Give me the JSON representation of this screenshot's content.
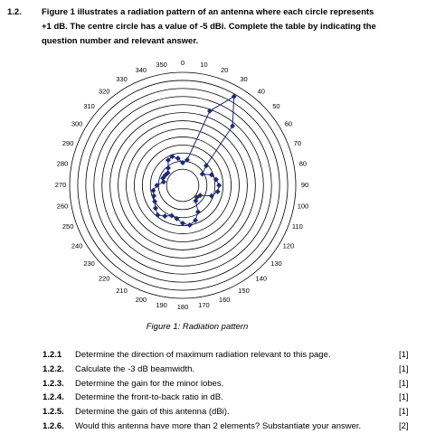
{
  "question_number": "1.2.",
  "intro_lines": [
    "Figure 1 illustrates a radiation pattern of an antenna where each circle represents",
    "+1 dB. The centre circle has a value of -5 dBi. Complete the table by indicating the",
    "question number and relevant answer."
  ],
  "chart_data": {
    "type": "radar",
    "categories": [
      "0",
      "10",
      "20",
      "30",
      "40",
      "50",
      "60",
      "70",
      "80",
      "90",
      "100",
      "110",
      "120",
      "130",
      "140",
      "150",
      "160",
      "170",
      "180",
      "190",
      "200",
      "210",
      "220",
      "230",
      "240",
      "250",
      "260",
      "270",
      "280",
      "290",
      "300",
      "310",
      "320",
      "330",
      "340",
      "350"
    ],
    "values": [
      -4.2,
      -3.8,
      2.8,
      5.7,
      2.6,
      -3.2,
      -4.2,
      -3.2,
      -2.8,
      -2.5,
      -2.6,
      -3.2,
      -4.5,
      -4.7,
      -4.5,
      -3.2,
      -2.4,
      -2.0,
      -2.3,
      -2.8,
      -3.0,
      -2.6,
      -2.2,
      -2.6,
      -3.0,
      -3.2,
      -3.3,
      -3.8,
      -4.6,
      -4.4,
      -4.5,
      -4.6,
      -4.2,
      -3.4,
      -3.2,
      -3.6
    ],
    "color": "#1f2a7a",
    "rlim": [
      -7,
      7
    ],
    "rticks": [
      -5,
      -4,
      -3,
      -2,
      -1,
      0,
      1,
      2,
      3,
      4,
      5,
      6,
      7
    ]
  },
  "caption": "Figure 1: Radiation pattern",
  "questions": [
    {
      "number": "1.2.1",
      "text": "Determine the direction of maximum radiation relevant to this page.",
      "marks": "[1]"
    },
    {
      "number": "1.2.2.",
      "text": "Calculate the -3 dB beamwidth.",
      "marks": "[1]"
    },
    {
      "number": "1.2.3.",
      "text": "Determine the gain for the minor lobes.",
      "marks": "[1]"
    },
    {
      "number": "1.2.4.",
      "text": "Determine the front-to-back ratio in dB.",
      "marks": "[1]"
    },
    {
      "number": "1.2.5.",
      "text": "Determine the gain of this antenna (dBi).",
      "marks": "[1]"
    },
    {
      "number": "1.2.6.",
      "text": "Would this antenna have more than 2 elements? Substantiate your answer.",
      "marks": "[2]"
    }
  ]
}
